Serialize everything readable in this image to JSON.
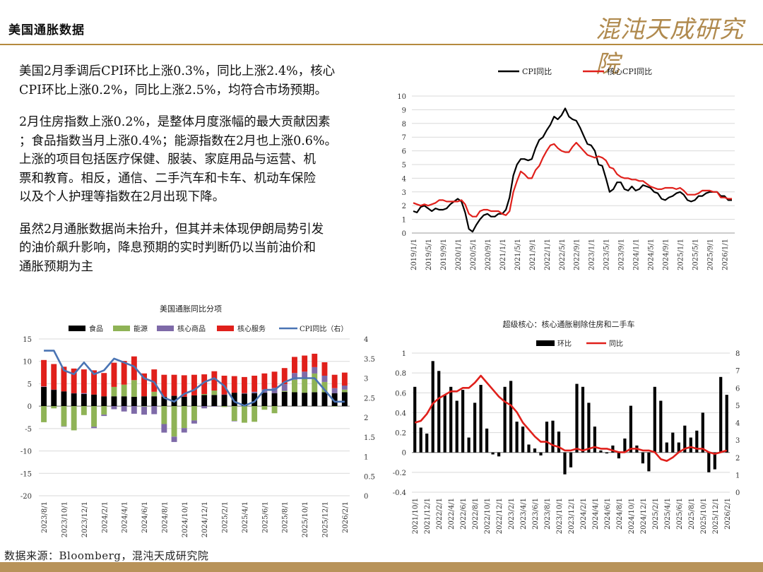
{
  "header": {
    "title": "美国通胀数据",
    "logo_text": "混沌天成研究院"
  },
  "text": {
    "p1": "美国2月季调后CPI环比上涨0.3%，同比上涨2.4%，核心\nCPI环比上涨0.2%，同比上涨2.5%，均符合市场预期。",
    "p2": "2月住房指数上涨0.2%，是整体月度涨幅的最大贡献因素\n；食品指数当月上涨0.4%；能源指数在2月也上涨0.6%。\n上涨的项目包括医疗保健、服装、家庭用品与运营、机\n票和教育。相反，通信、二手汽车和卡车、机动车保险\n以及个人护理等指数在2月出现下降。",
    "p3": "虽然2月通胀数据尚未抬升，但其并未体现伊朗局势引发\n的油价飙升影响，降息预期的实时判断仍以当前油价和\n通胀预期为主"
  },
  "footer": {
    "source": "数据来源：Bloomberg，混沌天成研究院"
  },
  "colors": {
    "black": "#000000",
    "red": "#e0201b",
    "green": "#8fb356",
    "purple": "#7e6aa8",
    "blue": "#4a74b4",
    "gold": "#b58a3e"
  },
  "chart_data": [
    {
      "type": "line",
      "title": "",
      "legend": [
        "CPI同比",
        "核心CPI同比"
      ],
      "legend_position": "top",
      "ylim": [
        0,
        10
      ],
      "yticks": [
        "0",
        "1",
        "2",
        "3",
        "4",
        "5",
        "6",
        "7",
        "8",
        "9",
        "10"
      ],
      "xticks": [
        "2019/1/1",
        "2019/5/1",
        "2019/9/1",
        "2020/1/1",
        "2020/5/1",
        "2020/9/1",
        "2021/1/1",
        "2021/5/1",
        "2021/9/1",
        "2022/1/1",
        "2022/5/1",
        "2022/9/1",
        "2023/1/1",
        "2023/5/1",
        "2023/9/1",
        "2024/1/1",
        "2024/5/1",
        "2024/9/1",
        "2025/1/1",
        "2025/5/1",
        "2025/9/1",
        "2026/1/1"
      ],
      "grid": true,
      "series": [
        {
          "name": "CPI同比",
          "color": "#000000",
          "values": [
            1.6,
            1.5,
            1.9,
            2.0,
            1.8,
            1.6,
            1.8,
            1.7,
            1.7,
            1.8,
            2.1,
            2.3,
            2.5,
            2.3,
            1.5,
            0.3,
            0.1,
            0.6,
            1.0,
            1.3,
            1.4,
            1.2,
            1.2,
            1.4,
            1.4,
            1.7,
            2.6,
            4.2,
            5.0,
            5.4,
            5.4,
            5.3,
            5.4,
            6.2,
            6.8,
            7.0,
            7.5,
            7.9,
            8.5,
            8.3,
            8.6,
            9.1,
            8.5,
            8.3,
            8.2,
            7.7,
            7.1,
            6.5,
            6.4,
            6.0,
            5.0,
            4.9,
            4.0,
            3.0,
            3.2,
            3.7,
            3.7,
            3.2,
            3.1,
            3.4,
            3.1,
            3.2,
            3.5,
            3.4,
            3.3,
            3.0,
            2.9,
            2.5,
            2.4,
            2.6,
            2.7,
            2.9,
            3.0,
            2.8,
            2.4,
            2.3,
            2.4,
            2.7,
            2.7,
            2.9,
            3.0,
            3.0,
            3.0,
            2.7,
            2.7,
            2.4,
            2.4
          ]
        },
        {
          "name": "核心CPI同比",
          "color": "#e0201b",
          "values": [
            2.2,
            2.1,
            2.0,
            2.1,
            2.0,
            2.1,
            2.2,
            2.4,
            2.4,
            2.3,
            2.3,
            2.3,
            2.3,
            2.4,
            2.1,
            1.4,
            1.2,
            1.2,
            1.6,
            1.7,
            1.7,
            1.6,
            1.6,
            1.6,
            1.4,
            1.3,
            1.6,
            3.0,
            3.8,
            4.5,
            4.3,
            4.0,
            4.0,
            4.6,
            4.9,
            5.5,
            6.0,
            6.4,
            6.5,
            6.2,
            6.0,
            5.9,
            5.9,
            6.3,
            6.6,
            6.3,
            6.0,
            5.7,
            5.6,
            5.5,
            5.6,
            5.5,
            5.3,
            4.8,
            4.7,
            4.3,
            4.1,
            4.0,
            4.0,
            3.9,
            3.9,
            3.8,
            3.8,
            3.6,
            3.4,
            3.3,
            3.2,
            3.2,
            3.3,
            3.3,
            3.3,
            3.2,
            3.3,
            3.1,
            2.8,
            2.8,
            2.8,
            2.9,
            3.1,
            3.1,
            3.1,
            3.0,
            3.0,
            2.6,
            2.6,
            2.5,
            2.5
          ]
        }
      ]
    },
    {
      "type": "bar",
      "title": "美国通胀同比分项",
      "legend": [
        "食品",
        "能源",
        "核心商品",
        "核心服务",
        "CPI同比（右）"
      ],
      "legend_position": "top",
      "ylim": [
        -20,
        15
      ],
      "yticks": [
        "-20",
        "-15",
        "-10",
        "-5",
        "0",
        "5",
        "10",
        "15"
      ],
      "y2lim": [
        0,
        4
      ],
      "y2ticks": [
        "0",
        "0.5",
        "1",
        "1.5",
        "2",
        "2.5",
        "3",
        "3.5",
        "4"
      ],
      "xticks": [
        "2023/8/1",
        "2023/10/1",
        "2023/12/1",
        "2024/2/1",
        "2024/4/1",
        "2024/6/1",
        "2024/8/1",
        "2024/10/1",
        "2024/12/1",
        "2025/2/1",
        "2025/4/1",
        "2025/6/1",
        "2025/8/1",
        "2025/10/1",
        "2025/12/1",
        "2026/2/1"
      ],
      "grid": true,
      "categories": [
        "2023/8/1",
        "2023/9/1",
        "2023/10/1",
        "2023/11/1",
        "2023/12/1",
        "2024/1/1",
        "2024/2/1",
        "2024/3/1",
        "2024/4/1",
        "2024/5/1",
        "2024/6/1",
        "2024/7/1",
        "2024/8/1",
        "2024/9/1",
        "2024/10/1",
        "2024/11/1",
        "2024/12/1",
        "2025/1/1",
        "2025/2/1",
        "2025/3/1",
        "2025/4/1",
        "2025/5/1",
        "2025/6/1",
        "2025/7/1",
        "2025/8/1",
        "2025/9/1",
        "2025/10/1",
        "2025/11/1",
        "2025/12/1",
        "2026/1/1",
        "2026/2/1"
      ],
      "series": [
        {
          "name": "食品",
          "color": "#000000",
          "values": [
            4.3,
            3.7,
            3.3,
            2.9,
            2.7,
            2.6,
            2.2,
            2.2,
            2.2,
            2.1,
            2.2,
            2.2,
            2.1,
            2.3,
            2.1,
            2.4,
            2.5,
            2.5,
            2.6,
            3.0,
            2.8,
            2.9,
            3.0,
            2.9,
            3.2,
            3.1,
            3.0,
            3.1,
            3.1,
            2.9,
            3.1
          ]
        },
        {
          "name": "能源",
          "color": "#8fb356",
          "values": [
            -3.6,
            -0.5,
            -4.5,
            -5.4,
            -2.0,
            -4.6,
            -1.9,
            2.1,
            2.6,
            3.7,
            -0.1,
            1.0,
            -4.0,
            -6.8,
            -4.9,
            -3.2,
            0.2,
            1.0,
            -0.2,
            -3.3,
            -3.7,
            -3.5,
            -0.8,
            -1.6,
            0.2,
            2.8,
            3.1,
            4.2,
            2.3,
            -0.1,
            0.6
          ]
        },
        {
          "name": "核心商品",
          "color": "#7e6aa8",
          "values": [
            0.1,
            0.0,
            -0.1,
            0.0,
            0.2,
            -0.3,
            -0.3,
            -0.7,
            -1.2,
            -1.7,
            -1.8,
            -1.8,
            -1.9,
            -1.2,
            -1.0,
            -0.7,
            -0.5,
            -0.1,
            0.0,
            -0.1,
            0.1,
            0.3,
            0.7,
            1.2,
            1.5,
            1.5,
            1.6,
            1.4,
            1.4,
            1.1,
            0.9
          ]
        },
        {
          "name": "核心服务",
          "color": "#e0201b",
          "values": [
            5.9,
            5.7,
            5.5,
            5.5,
            5.3,
            5.4,
            5.2,
            5.4,
            5.3,
            5.3,
            5.1,
            5.0,
            4.9,
            4.7,
            4.8,
            4.6,
            4.4,
            4.3,
            4.2,
            3.7,
            3.6,
            3.6,
            3.6,
            3.6,
            3.6,
            3.6,
            3.6,
            3.0,
            3.0,
            3.0,
            2.9
          ]
        },
        {
          "name": "CPI同比（右）",
          "color": "#4a74b4",
          "axis": "right",
          "values": [
            3.7,
            3.7,
            3.2,
            3.1,
            3.4,
            3.1,
            3.2,
            3.5,
            3.4,
            3.3,
            3.0,
            2.9,
            2.5,
            2.4,
            2.6,
            2.7,
            2.9,
            3.0,
            2.8,
            2.4,
            2.3,
            2.4,
            2.7,
            2.7,
            2.9,
            3.0,
            3.0,
            3.0,
            2.7,
            2.4,
            2.4
          ]
        }
      ]
    },
    {
      "type": "bar",
      "title": "超级核心：核心通胀剔除住房和二手车",
      "legend": [
        "环比",
        "同比"
      ],
      "legend_position": "top",
      "ylim": [
        -0.4,
        1
      ],
      "yticks": [
        "-0.4",
        "-0.2",
        "0",
        "0.2",
        "0.4",
        "0.6",
        "0.8",
        "1"
      ],
      "y2lim": [
        0,
        8
      ],
      "y2ticks": [
        "0",
        "1",
        "2",
        "3",
        "4",
        "5",
        "6",
        "7",
        "8"
      ],
      "xticks": [
        "2021/10/1",
        "2021/12/1",
        "2022/2/1",
        "2022/4/1",
        "2022/6/1",
        "2022/8/1",
        "2022/10/1",
        "2022/12/1",
        "2023/2/1",
        "2023/4/1",
        "2023/6/1",
        "2023/8/1",
        "2023/10/1",
        "2023/12/1",
        "2024/2/1",
        "2024/4/1",
        "2024/6/1",
        "2024/8/1",
        "2024/10/1",
        "2024/12/1",
        "2025/2/1",
        "2025/4/1",
        "2025/6/1",
        "2025/8/1",
        "2025/10/1",
        "2025/12/1",
        "2026/2/1"
      ],
      "grid": true,
      "categories": [
        "2021/10/1",
        "2021/11/1",
        "2021/12/1",
        "2022/1/1",
        "2022/2/1",
        "2022/3/1",
        "2022/4/1",
        "2022/5/1",
        "2022/6/1",
        "2022/7/1",
        "2022/8/1",
        "2022/9/1",
        "2022/10/1",
        "2022/11/1",
        "2022/12/1",
        "2023/1/1",
        "2023/2/1",
        "2023/3/1",
        "2023/4/1",
        "2023/5/1",
        "2023/6/1",
        "2023/7/1",
        "2023/8/1",
        "2023/9/1",
        "2023/10/1",
        "2023/11/1",
        "2023/12/1",
        "2024/1/1",
        "2024/2/1",
        "2024/3/1",
        "2024/4/1",
        "2024/5/1",
        "2024/6/1",
        "2024/7/1",
        "2024/8/1",
        "2024/9/1",
        "2024/10/1",
        "2024/11/1",
        "2024/12/1",
        "2025/1/1",
        "2025/2/1",
        "2025/3/1",
        "2025/4/1",
        "2025/5/1",
        "2025/6/1",
        "2025/7/1",
        "2025/8/1",
        "2025/9/1",
        "2025/10/1",
        "2025/11/1",
        "2025/12/1",
        "2026/1/1",
        "2026/2/1"
      ],
      "series": [
        {
          "name": "环比",
          "color": "#000000",
          "values": [
            0.66,
            0.25,
            0.19,
            0.92,
            0.82,
            0.58,
            0.66,
            0.52,
            0.63,
            0.15,
            0.5,
            0.68,
            0.24,
            -0.02,
            -0.04,
            0.66,
            0.72,
            0.31,
            0.26,
            0.08,
            0.04,
            -0.03,
            0.31,
            0.32,
            0.21,
            -0.22,
            -0.15,
            0.69,
            0.66,
            0.5,
            0.26,
            0.02,
            -0.01,
            0.07,
            -0.06,
            0.14,
            0.47,
            0.07,
            -0.11,
            -0.19,
            0.66,
            0.52,
            0.1,
            0.2,
            0.1,
            0.27,
            0.15,
            0.22,
            0.4,
            -0.2,
            -0.17,
            0.76,
            0.58
          ]
        },
        {
          "name": "同比",
          "color": "#e0201b",
          "axis": "right",
          "values": [
            4.0,
            4.1,
            4.5,
            5.1,
            5.4,
            5.6,
            5.8,
            5.8,
            6.0,
            6.0,
            6.3,
            6.7,
            6.3,
            5.9,
            5.5,
            5.2,
            5.0,
            4.6,
            4.0,
            3.6,
            3.2,
            2.9,
            2.9,
            2.7,
            2.6,
            2.4,
            2.4,
            2.5,
            2.4,
            2.5,
            2.6,
            2.5,
            2.5,
            2.4,
            2.3,
            2.3,
            2.5,
            2.5,
            2.4,
            2.4,
            2.3,
            1.9,
            1.8,
            2.0,
            2.3,
            2.5,
            2.6,
            2.5,
            2.5,
            2.3,
            2.2,
            2.3,
            2.4
          ]
        }
      ]
    }
  ]
}
